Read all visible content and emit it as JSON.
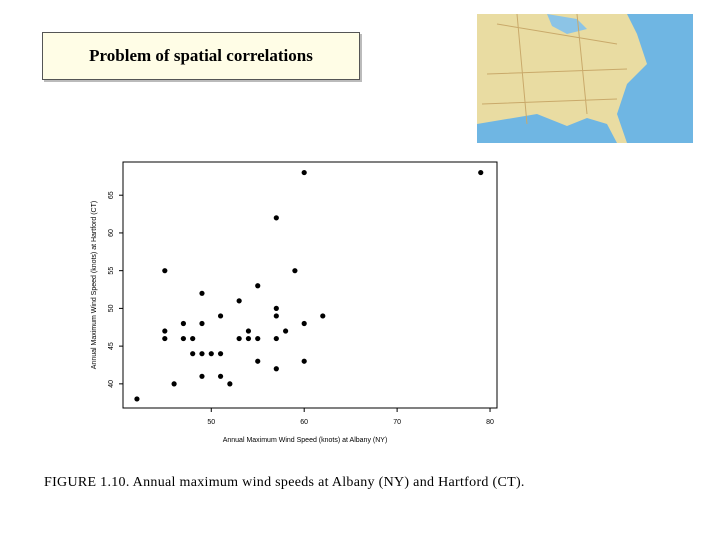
{
  "slide_title": "Problem of spatial correlations",
  "caption": "FIGURE 1.10. Annual maximum wind speeds at Albany (NY) and Hartford (CT).",
  "chart_data": {
    "type": "scatter",
    "x_label": "Annual Maximum Wind Speed (knots) at Albany (NY)",
    "y_label": "Annual Maximum Wind Speed (knots) at Hartford (CT)",
    "x": [
      42,
      45,
      45,
      45,
      46,
      47,
      47,
      48,
      48,
      49,
      49,
      49,
      49,
      50,
      51,
      51,
      51,
      52,
      53,
      53,
      54,
      54,
      55,
      55,
      55,
      57,
      57,
      57,
      57,
      57,
      58,
      59,
      60,
      60,
      60,
      62,
      79
    ],
    "values": [
      38,
      55,
      47,
      46,
      40,
      48,
      46,
      46,
      44,
      52,
      48,
      44,
      41,
      44,
      44,
      49,
      41,
      40,
      51,
      46,
      47,
      46,
      53,
      46,
      43,
      62,
      50,
      49,
      46,
      42,
      47,
      55,
      68,
      48,
      43,
      49,
      68
    ],
    "color": "#000000",
    "xlim": [
      40.5,
      80.75
    ],
    "xticks": [
      50,
      60,
      70,
      80
    ],
    "ylim": [
      36.8,
      69.4
    ],
    "yticks": [
      40,
      45,
      50,
      55,
      60,
      65
    ]
  }
}
